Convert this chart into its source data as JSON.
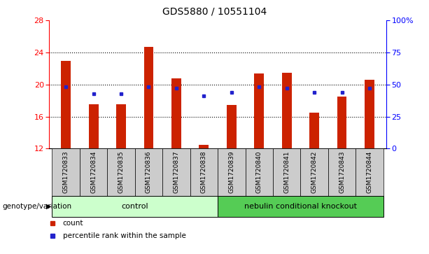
{
  "title": "GDS5880 / 10551104",
  "samples": [
    "GSM1720833",
    "GSM1720834",
    "GSM1720835",
    "GSM1720836",
    "GSM1720837",
    "GSM1720838",
    "GSM1720839",
    "GSM1720840",
    "GSM1720841",
    "GSM1720842",
    "GSM1720843",
    "GSM1720844"
  ],
  "count_values": [
    22.9,
    17.5,
    17.5,
    24.7,
    20.8,
    12.5,
    17.4,
    21.4,
    21.5,
    16.5,
    18.5,
    20.6
  ],
  "percentile_values": [
    48,
    43,
    43,
    48,
    47,
    41,
    44,
    48,
    47,
    44,
    44,
    47
  ],
  "ylim_left": [
    12,
    28
  ],
  "ylim_right": [
    0,
    100
  ],
  "yticks_left": [
    12,
    16,
    20,
    24,
    28
  ],
  "yticks_right": [
    0,
    25,
    50,
    75,
    100
  ],
  "yticklabels_right": [
    "0",
    "25",
    "50",
    "75",
    "100%"
  ],
  "bar_color": "#cc2200",
  "square_color": "#2222cc",
  "bar_width": 0.35,
  "control_label": "control",
  "knockout_label": "nebulin conditional knockout",
  "genotype_label": "genotype/variation",
  "legend_count_label": "count",
  "legend_percentile_label": "percentile rank within the sample",
  "control_bg": "#ccffcc",
  "knockout_bg": "#55cc55",
  "sample_bg": "#cccccc",
  "title_fontsize": 10,
  "tick_fontsize": 8,
  "sample_fontsize": 6.5
}
